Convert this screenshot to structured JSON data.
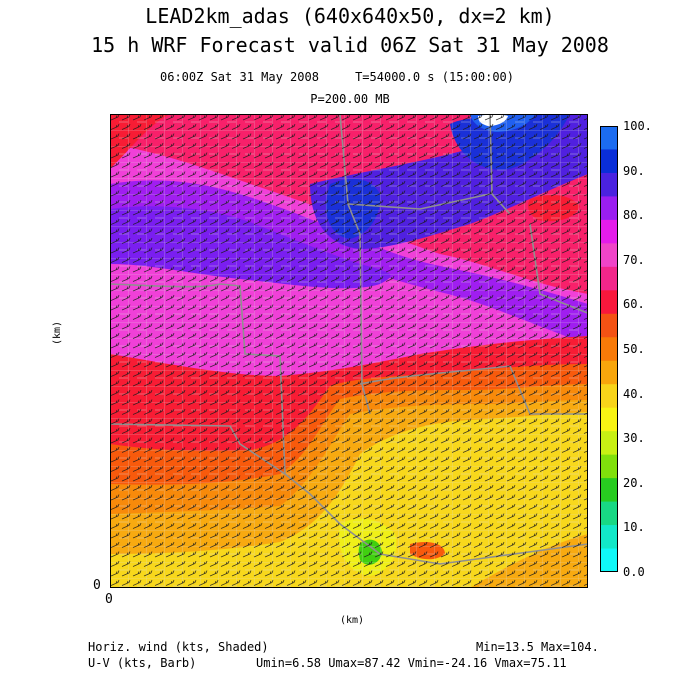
{
  "header": {
    "title_line1": "LEAD2km_adas (640x640x50, dx=2 km)",
    "title_line2": "15 h WRF Forecast valid 06Z Sat 31 May 2008",
    "time_line": "06:00Z Sat 31 May 2008     T=54000.0 s (15:00:00)",
    "pressure_level": "P=200.00 MB"
  },
  "axes": {
    "x_label": "(km)",
    "y_label": "(km)",
    "x_origin": "0",
    "y_origin": "0"
  },
  "colorbar": {
    "labels": [
      "100.",
      "90.",
      "80.",
      "70.",
      "60.",
      "50.",
      "40.",
      "30.",
      "20.",
      "10.",
      "0.0"
    ],
    "colors": [
      "#1c6cf0",
      "#0a2ed8",
      "#4a22e0",
      "#9a1ef0",
      "#e41cea",
      "#f044c8",
      "#f2268a",
      "#f8183c",
      "#f45214",
      "#f87a08",
      "#f8a60c",
      "#f8d41a",
      "#f8f414",
      "#c8f014",
      "#80e00c",
      "#28cc20",
      "#18d884",
      "#12e8c8",
      "#10f8f8"
    ]
  },
  "footer": {
    "field1_label": "Horiz. wind (kts, Shaded)",
    "field1_stats": "Min=13.5 Max=104.",
    "field2_label": "U-V (kts, Barb)",
    "field2_stats": "Umin=6.58 Umax=87.42 Vmin=-24.16 Vmax=75.11"
  },
  "map": {
    "wind_speed_min_kts": 13.5,
    "wind_speed_max_kts": 104,
    "palette": {
      "magenta": "#f040d8",
      "pink_red": "#f8206a",
      "red": "#f81c34",
      "orange_red": "#f85a0c",
      "orange": "#f88a0a",
      "amber": "#f8aa10",
      "yellow": "#f8d81c",
      "bright_yellow": "#f0f018",
      "green": "#40d010",
      "violet": "#a01ef0",
      "purple": "#7a1ef0",
      "blue_violet": "#5020e0",
      "blue": "#1a30d8",
      "jet_core": "#2060f0",
      "white": "#ffffff",
      "border_gray": "#909090",
      "county_line": "#dcdcdc"
    }
  }
}
